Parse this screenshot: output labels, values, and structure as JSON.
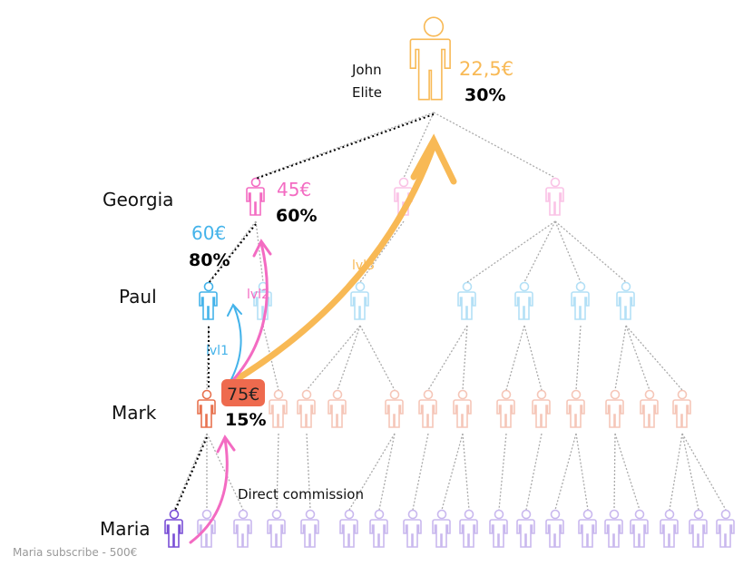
{
  "people": {
    "john": "John",
    "elite": "Elite",
    "georgia": "Georgia",
    "paul": "Paul",
    "mark": "Mark",
    "maria": "Maria"
  },
  "commissions": {
    "john": {
      "amount": "22,5€",
      "rate": "30%"
    },
    "georgia": {
      "amount": "45€",
      "rate": "60%"
    },
    "paul": {
      "amount": "60€",
      "rate": "80%"
    },
    "mark": {
      "amount": "75€",
      "rate": "15%"
    }
  },
  "arrows": {
    "lvl1": "lvl1",
    "lvl2": "lvl2",
    "lvl3": "lvl3"
  },
  "direct_commission": "Direct commission",
  "footer": "Maria subscribe - 500€"
}
